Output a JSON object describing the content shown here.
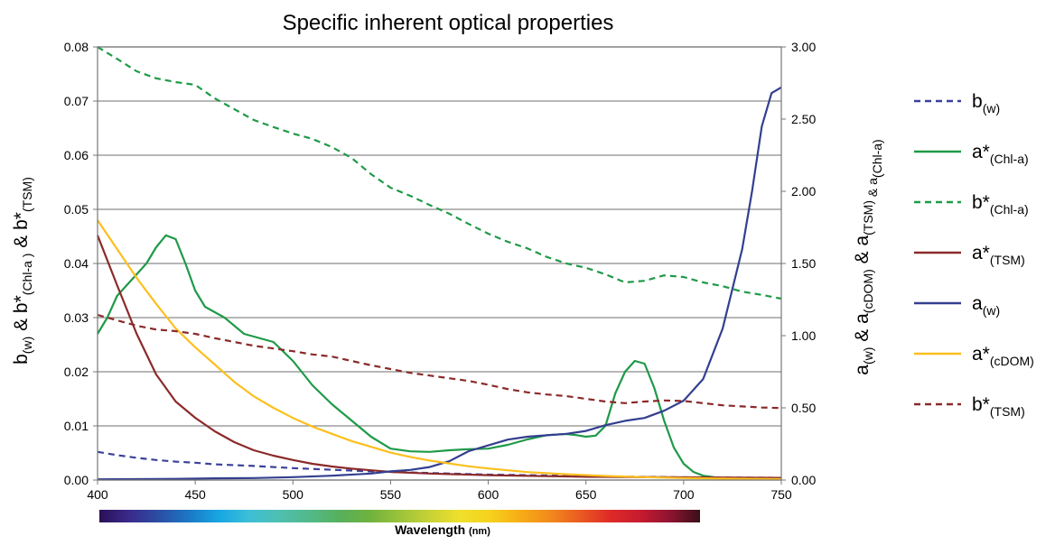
{
  "chart_data": {
    "type": "line",
    "title": "Specific inherent optical properties",
    "xlabel": "Wavelength",
    "xlabel_unit": "(nm)",
    "ylabel_left": {
      "parts": [
        {
          "t": "b",
          "sub": false
        },
        {
          "t": "(w)",
          "sub": true
        },
        {
          "t": " & b*",
          "sub": false
        },
        {
          "t": "(Chl-a )",
          "sub": true
        },
        {
          "t": "  & b*",
          "sub": false
        },
        {
          "t": "(TSM)",
          "sub": true
        }
      ]
    },
    "ylabel_right": {
      "parts": [
        {
          "t": "a",
          "sub": false
        },
        {
          "t": "(w)",
          "sub": true
        },
        {
          "t": " & a",
          "sub": false
        },
        {
          "t": "(cDOM)",
          "sub": true
        },
        {
          "t": " & a",
          "sub": false
        },
        {
          "t": "(TSM)",
          "sub": true
        },
        {
          "t": " & a",
          "sub": true
        },
        {
          "t": "(Chl-a)",
          "sub": true
        }
      ]
    },
    "xlim": [
      400,
      750
    ],
    "x_ticks": [
      "400",
      "450",
      "500",
      "550",
      "600",
      "650",
      "700",
      "750"
    ],
    "ylim_left": [
      0,
      0.08
    ],
    "y_ticks_left": [
      "0.00",
      "0.01",
      "0.02",
      "0.03",
      "0.04",
      "0.05",
      "0.06",
      "0.07",
      "0.08"
    ],
    "ylim_right": [
      0,
      3.0
    ],
    "y_ticks_right": [
      "0.00",
      "0.50",
      "1.00",
      "1.50",
      "2.00",
      "2.50",
      "3.00"
    ],
    "grid": "horizontal",
    "legend_position": "right",
    "series": [
      {
        "name": "b(w)",
        "label": "b",
        "label_sub": "(w)",
        "color": "#3a4199",
        "dash": "dashed",
        "axis": "left",
        "points": [
          [
            400,
            0.0052
          ],
          [
            410,
            0.0046
          ],
          [
            420,
            0.0041
          ],
          [
            430,
            0.0037
          ],
          [
            440,
            0.0034
          ],
          [
            450,
            0.0032
          ],
          [
            460,
            0.0029
          ],
          [
            480,
            0.0026
          ],
          [
            500,
            0.0022
          ],
          [
            520,
            0.0019
          ],
          [
            540,
            0.0016
          ],
          [
            560,
            0.0014
          ],
          [
            580,
            0.0012
          ],
          [
            600,
            0.001
          ],
          [
            620,
            0.0009
          ],
          [
            650,
            0.0007
          ],
          [
            700,
            0.0005
          ],
          [
            750,
            0.0004
          ]
        ]
      },
      {
        "name": "a*(Chl-a)",
        "label": "a*",
        "label_sub": "(Chl-a)",
        "color": "#1f9a48",
        "dash": "solid",
        "axis": "left",
        "points": [
          [
            400,
            0.027
          ],
          [
            405,
            0.03
          ],
          [
            410,
            0.034
          ],
          [
            415,
            0.036
          ],
          [
            420,
            0.038
          ],
          [
            425,
            0.04
          ],
          [
            430,
            0.043
          ],
          [
            435,
            0.0452
          ],
          [
            440,
            0.0445
          ],
          [
            445,
            0.04
          ],
          [
            450,
            0.035
          ],
          [
            455,
            0.032
          ],
          [
            460,
            0.031
          ],
          [
            465,
            0.03
          ],
          [
            470,
            0.0285
          ],
          [
            475,
            0.027
          ],
          [
            480,
            0.0265
          ],
          [
            490,
            0.0255
          ],
          [
            500,
            0.022
          ],
          [
            510,
            0.0175
          ],
          [
            520,
            0.014
          ],
          [
            530,
            0.011
          ],
          [
            540,
            0.008
          ],
          [
            550,
            0.0058
          ],
          [
            560,
            0.0053
          ],
          [
            570,
            0.0052
          ],
          [
            580,
            0.0055
          ],
          [
            590,
            0.0057
          ],
          [
            600,
            0.0058
          ],
          [
            610,
            0.0065
          ],
          [
            620,
            0.0075
          ],
          [
            630,
            0.0083
          ],
          [
            640,
            0.0085
          ],
          [
            645,
            0.0083
          ],
          [
            650,
            0.008
          ],
          [
            655,
            0.0082
          ],
          [
            660,
            0.01
          ],
          [
            665,
            0.016
          ],
          [
            670,
            0.02
          ],
          [
            675,
            0.022
          ],
          [
            680,
            0.0215
          ],
          [
            685,
            0.017
          ],
          [
            690,
            0.011
          ],
          [
            695,
            0.006
          ],
          [
            700,
            0.003
          ],
          [
            705,
            0.0015
          ],
          [
            710,
            0.0008
          ],
          [
            720,
            0.0003
          ],
          [
            750,
            0.0002
          ]
        ]
      },
      {
        "name": "b*(Chl-a)",
        "label": "b*",
        "label_sub": "(Chl-a)",
        "color": "#1f9a48",
        "dash": "dashed",
        "axis": "left",
        "points": [
          [
            400,
            0.08
          ],
          [
            410,
            0.0778
          ],
          [
            420,
            0.0755
          ],
          [
            430,
            0.0742
          ],
          [
            440,
            0.0735
          ],
          [
            450,
            0.073
          ],
          [
            460,
            0.0705
          ],
          [
            470,
            0.0685
          ],
          [
            480,
            0.0665
          ],
          [
            490,
            0.0652
          ],
          [
            500,
            0.064
          ],
          [
            510,
            0.063
          ],
          [
            520,
            0.0615
          ],
          [
            530,
            0.0595
          ],
          [
            540,
            0.0565
          ],
          [
            550,
            0.054
          ],
          [
            560,
            0.0525
          ],
          [
            570,
            0.0508
          ],
          [
            580,
            0.0492
          ],
          [
            590,
            0.0473
          ],
          [
            600,
            0.0455
          ],
          [
            610,
            0.044
          ],
          [
            620,
            0.0428
          ],
          [
            630,
            0.0412
          ],
          [
            640,
            0.04
          ],
          [
            650,
            0.0392
          ],
          [
            660,
            0.038
          ],
          [
            670,
            0.0365
          ],
          [
            680,
            0.0368
          ],
          [
            690,
            0.0378
          ],
          [
            700,
            0.0375
          ],
          [
            710,
            0.0365
          ],
          [
            720,
            0.0358
          ],
          [
            730,
            0.0348
          ],
          [
            740,
            0.0342
          ],
          [
            750,
            0.0335
          ]
        ]
      },
      {
        "name": "a*(TSM)",
        "label": "a*",
        "label_sub": "(TSM)",
        "color": "#8b2a2a",
        "dash": "solid",
        "axis": "left",
        "points": [
          [
            400,
            0.0452
          ],
          [
            410,
            0.036
          ],
          [
            420,
            0.027
          ],
          [
            430,
            0.0195
          ],
          [
            440,
            0.0145
          ],
          [
            450,
            0.0115
          ],
          [
            460,
            0.009
          ],
          [
            470,
            0.007
          ],
          [
            480,
            0.0055
          ],
          [
            490,
            0.0045
          ],
          [
            500,
            0.0037
          ],
          [
            510,
            0.003
          ],
          [
            520,
            0.0025
          ],
          [
            530,
            0.0021
          ],
          [
            540,
            0.0018
          ],
          [
            550,
            0.0015
          ],
          [
            570,
            0.0012
          ],
          [
            600,
            0.0009
          ],
          [
            650,
            0.0006
          ],
          [
            700,
            0.0005
          ],
          [
            750,
            0.0004
          ]
        ]
      },
      {
        "name": "a(w)",
        "label": "a",
        "label_sub": "(w)",
        "color": "#333f8f",
        "dash": "solid",
        "axis": "right",
        "points": [
          [
            400,
            0.005
          ],
          [
            420,
            0.006
          ],
          [
            440,
            0.008
          ],
          [
            460,
            0.012
          ],
          [
            480,
            0.014
          ],
          [
            500,
            0.02
          ],
          [
            520,
            0.03
          ],
          [
            540,
            0.045
          ],
          [
            550,
            0.06
          ],
          [
            560,
            0.07
          ],
          [
            570,
            0.09
          ],
          [
            580,
            0.13
          ],
          [
            590,
            0.2
          ],
          [
            600,
            0.24
          ],
          [
            610,
            0.28
          ],
          [
            620,
            0.3
          ],
          [
            630,
            0.31
          ],
          [
            640,
            0.32
          ],
          [
            650,
            0.34
          ],
          [
            660,
            0.38
          ],
          [
            670,
            0.41
          ],
          [
            680,
            0.43
          ],
          [
            690,
            0.48
          ],
          [
            700,
            0.55
          ],
          [
            710,
            0.7
          ],
          [
            720,
            1.05
          ],
          [
            730,
            1.6
          ],
          [
            735,
            2.0
          ],
          [
            740,
            2.45
          ],
          [
            745,
            2.68
          ],
          [
            750,
            2.72
          ]
        ]
      },
      {
        "name": "a*(cDOM)",
        "label": "a*",
        "label_sub": "(cDOM)",
        "color": "#fdbf1e",
        "dash": "solid",
        "axis": "right",
        "points": [
          [
            400,
            1.8
          ],
          [
            410,
            1.6
          ],
          [
            420,
            1.4
          ],
          [
            430,
            1.22
          ],
          [
            440,
            1.05
          ],
          [
            450,
            0.92
          ],
          [
            460,
            0.8
          ],
          [
            470,
            0.68
          ],
          [
            480,
            0.58
          ],
          [
            490,
            0.5
          ],
          [
            500,
            0.43
          ],
          [
            510,
            0.37
          ],
          [
            520,
            0.32
          ],
          [
            530,
            0.27
          ],
          [
            540,
            0.23
          ],
          [
            550,
            0.19
          ],
          [
            560,
            0.16
          ],
          [
            570,
            0.135
          ],
          [
            580,
            0.115
          ],
          [
            590,
            0.095
          ],
          [
            600,
            0.08
          ],
          [
            620,
            0.055
          ],
          [
            640,
            0.04
          ],
          [
            660,
            0.028
          ],
          [
            680,
            0.02
          ],
          [
            700,
            0.014
          ],
          [
            720,
            0.01
          ],
          [
            750,
            0.006
          ]
        ]
      },
      {
        "name": "b*(TSM)",
        "label": "b*",
        "label_sub": "(TSM)",
        "color": "#8b2a2a",
        "dash": "dashed",
        "axis": "left",
        "points": [
          [
            400,
            0.0305
          ],
          [
            410,
            0.0295
          ],
          [
            420,
            0.0285
          ],
          [
            430,
            0.0278
          ],
          [
            440,
            0.0275
          ],
          [
            450,
            0.027
          ],
          [
            460,
            0.0262
          ],
          [
            470,
            0.0255
          ],
          [
            480,
            0.0248
          ],
          [
            490,
            0.0243
          ],
          [
            500,
            0.0238
          ],
          [
            510,
            0.0232
          ],
          [
            520,
            0.0228
          ],
          [
            530,
            0.022
          ],
          [
            540,
            0.0212
          ],
          [
            550,
            0.0205
          ],
          [
            560,
            0.0198
          ],
          [
            570,
            0.0193
          ],
          [
            580,
            0.0188
          ],
          [
            590,
            0.0183
          ],
          [
            600,
            0.0176
          ],
          [
            610,
            0.0168
          ],
          [
            620,
            0.0162
          ],
          [
            630,
            0.0158
          ],
          [
            640,
            0.0155
          ],
          [
            650,
            0.015
          ],
          [
            660,
            0.0145
          ],
          [
            670,
            0.0142
          ],
          [
            680,
            0.0145
          ],
          [
            690,
            0.0147
          ],
          [
            700,
            0.0146
          ],
          [
            710,
            0.0142
          ],
          [
            720,
            0.0138
          ],
          [
            730,
            0.0136
          ],
          [
            740,
            0.0134
          ],
          [
            750,
            0.0133
          ]
        ]
      }
    ],
    "spectrum_colors": [
      "#2a1056",
      "#3a2a8c",
      "#2b4fa5",
      "#1b79c6",
      "#17a7e3",
      "#3dbfd6",
      "#4fbfb0",
      "#52b98a",
      "#57b05c",
      "#6fb23e",
      "#9bc33a",
      "#c7d236",
      "#efe02c",
      "#f6d21c",
      "#f7ad16",
      "#f28a1c",
      "#ea5b22",
      "#df2a27",
      "#c71b2f",
      "#8e1430",
      "#3a0f1a"
    ]
  }
}
